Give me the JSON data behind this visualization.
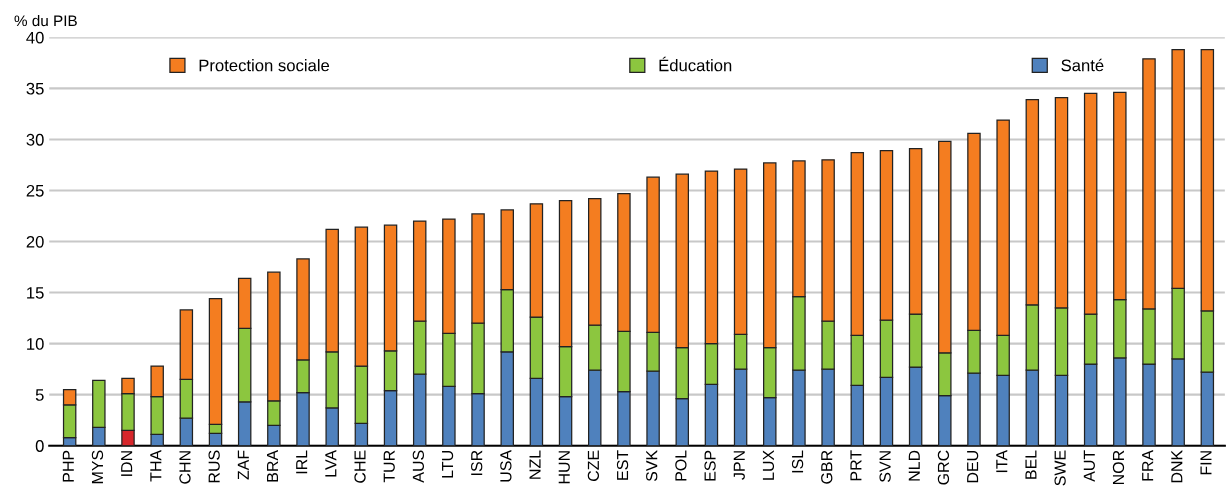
{
  "chart_data": {
    "type": "bar",
    "stacked": true,
    "ylabel": "% du PIB",
    "categories": [
      "PHP",
      "MYS",
      "IDN",
      "THA",
      "CHN",
      "RUS",
      "ZAF",
      "BRA",
      "IRL",
      "LVA",
      "CHE",
      "TUR",
      "AUS",
      "LTU",
      "ISR",
      "USA",
      "NZL",
      "HUN",
      "CZE",
      "EST",
      "SVK",
      "POL",
      "ESP",
      "JPN",
      "LUX",
      "ISL",
      "GBR",
      "PRT",
      "SVN",
      "NLD",
      "GRC",
      "DEU",
      "ITA",
      "BEL",
      "SWE",
      "AUT",
      "NOR",
      "FRA",
      "DNK",
      "FIN"
    ],
    "series": [
      {
        "name": "Santé",
        "color": "#4f81bd",
        "colors": [
          "#4f81bd",
          "#4f81bd",
          "#d7262b",
          "#4f81bd",
          "#4f81bd",
          "#4f81bd",
          "#4f81bd",
          "#4f81bd",
          "#4f81bd",
          "#4f81bd",
          "#4f81bd",
          "#4f81bd",
          "#4f81bd",
          "#4f81bd",
          "#4f81bd",
          "#4f81bd",
          "#4f81bd",
          "#4f81bd",
          "#4f81bd",
          "#4f81bd",
          "#4f81bd",
          "#4f81bd",
          "#4f81bd",
          "#4f81bd",
          "#4f81bd",
          "#4f81bd",
          "#4f81bd",
          "#4f81bd",
          "#4f81bd",
          "#4f81bd",
          "#4f81bd",
          "#4f81bd",
          "#4f81bd",
          "#4f81bd",
          "#4f81bd",
          "#4f81bd",
          "#4f81bd",
          "#4f81bd",
          "#4f81bd",
          "#4f81bd"
        ],
        "values": [
          0.8,
          1.8,
          1.5,
          1.1,
          2.7,
          1.2,
          4.3,
          2.0,
          5.2,
          3.7,
          2.2,
          5.4,
          7.0,
          5.8,
          5.1,
          9.2,
          6.6,
          4.8,
          7.4,
          5.3,
          7.3,
          4.6,
          6.0,
          7.5,
          4.7,
          7.4,
          7.5,
          5.9,
          6.7,
          7.7,
          4.9,
          7.1,
          6.9,
          7.4,
          6.9,
          8.0,
          8.6,
          8.0,
          8.5,
          7.2
        ]
      },
      {
        "name": "Éducation",
        "color": "#8cc63f",
        "values": [
          3.2,
          4.6,
          3.6,
          3.7,
          3.8,
          0.9,
          7.2,
          2.4,
          3.2,
          5.5,
          5.6,
          3.9,
          5.2,
          5.2,
          6.9,
          6.1,
          6.0,
          4.9,
          4.4,
          5.9,
          3.8,
          5.0,
          4.0,
          3.4,
          4.9,
          7.2,
          4.7,
          4.9,
          5.6,
          5.2,
          4.2,
          4.2,
          3.9,
          6.4,
          6.6,
          4.9,
          5.7,
          5.4,
          6.9,
          6.0
        ]
      },
      {
        "name": "Protection sociale",
        "color": "#f47d20",
        "values": [
          1.5,
          null,
          1.5,
          3.0,
          6.8,
          12.3,
          4.9,
          12.6,
          9.9,
          12.0,
          13.6,
          12.3,
          9.8,
          11.2,
          10.7,
          7.8,
          11.1,
          14.3,
          12.4,
          13.5,
          15.2,
          17.0,
          16.9,
          16.2,
          18.1,
          13.3,
          15.8,
          17.9,
          16.6,
          16.2,
          20.7,
          19.3,
          21.1,
          20.1,
          20.6,
          21.6,
          20.3,
          24.5,
          23.4,
          25.6
        ]
      }
    ],
    "ylim": [
      0,
      40
    ],
    "yticks": [
      0,
      5,
      10,
      15,
      20,
      25,
      30,
      35,
      40
    ],
    "grid": "y",
    "legend": "top"
  }
}
